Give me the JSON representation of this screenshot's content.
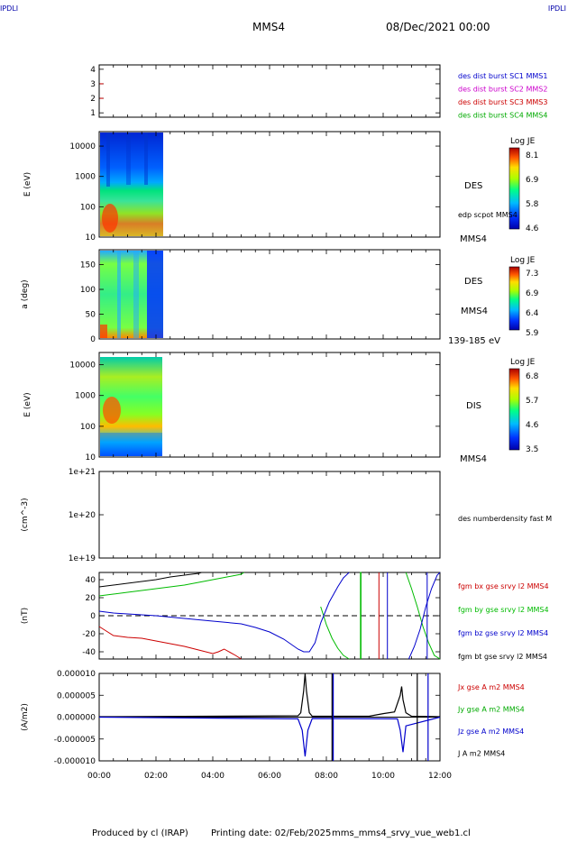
{
  "header": {
    "corner_label": "IPDLI",
    "spacecraft": "MMS4",
    "date_time": "08/Dec/2021 00:00"
  },
  "footer": {
    "produced_by": "Produced by cl (IRAP)",
    "printing_date": "Printing date: 02/Feb/2025",
    "file_name": "mms_mms4_srvy_vue_web1.cl"
  },
  "time_axis": {
    "range_hours": [
      0,
      12
    ],
    "tick_labels": [
      "00:00",
      "02:00",
      "04:00",
      "06:00",
      "08:00",
      "10:00",
      "12:00"
    ]
  },
  "chart_data": [
    {
      "type": "scatter",
      "panel": "burst-indicator",
      "ylim": [
        0.7,
        4.3
      ],
      "yticks": [
        "1",
        "2",
        "3",
        "4"
      ],
      "legend": [
        {
          "label": "des dist burst SC1 MMS1",
          "color": "#0000cc"
        },
        {
          "label": "des dist burst SC2 MMS2",
          "color": "#cc00cc"
        },
        {
          "label": "des dist burst SC3 MMS3",
          "color": "#cc0000"
        },
        {
          "label": "des dist burst SC4 MMS4",
          "color": "#00aa00"
        }
      ],
      "points": [
        {
          "x": 0.02,
          "y": 3,
          "color": "#cc0000"
        },
        {
          "x": 0.02,
          "y": 2,
          "color": "#cc0000"
        }
      ]
    },
    {
      "type": "heatmap",
      "panel": "des-energy",
      "ylabel": "E (eV)",
      "yscale": "log",
      "ylim": [
        10,
        30000
      ],
      "yticks": [
        "10",
        "100",
        "1000",
        "10000"
      ],
      "data_end_hours": 2.27,
      "instrument": "DES",
      "side_note": "edp scpot MMS4",
      "spacecraft": "MMS4",
      "colorbar": {
        "title": "Log JE",
        "ticks": [
          "8.1",
          "6.9",
          "5.8",
          "4.6"
        ]
      }
    },
    {
      "type": "heatmap",
      "panel": "des-pitch-angle",
      "ylabel": "a (deg)",
      "ylim": [
        0,
        180
      ],
      "yticks": [
        "0",
        "50",
        "100",
        "150"
      ],
      "data_end_hours": 2.27,
      "instrument": "DES",
      "spacecraft": "MMS4",
      "energy_band": "139-185 eV",
      "colorbar": {
        "title": "Log JE",
        "ticks": [
          "7.3",
          "6.9",
          "6.4",
          "5.9"
        ]
      }
    },
    {
      "type": "heatmap",
      "panel": "dis-energy",
      "ylabel": "E (eV)",
      "yscale": "log",
      "ylim": [
        10,
        25000
      ],
      "yticks": [
        "10",
        "100",
        "1000",
        "10000"
      ],
      "data_end_hours": 2.23,
      "instrument": "DIS",
      "spacecraft": "MMS4",
      "colorbar": {
        "title": "Log JE",
        "ticks": [
          "6.8",
          "5.7",
          "4.6",
          "3.5"
        ]
      }
    },
    {
      "type": "line",
      "panel": "density",
      "ylabel": "(cm^-3)",
      "yscale": "log",
      "yticks": [
        "1e+19",
        "1e+20",
        "1e+21"
      ],
      "legend": [
        {
          "label": "des numberdensity fast M",
          "color": "#000000"
        }
      ]
    },
    {
      "type": "line",
      "panel": "magnetic-field",
      "ylabel": "(nT)",
      "ylim": [
        -48,
        48
      ],
      "yticks": [
        "-40",
        "-20",
        "0",
        "20",
        "40"
      ],
      "legend": [
        {
          "label": "fgm bx gse srvy l2 MMS4",
          "color": "#cc0000"
        },
        {
          "label": "fgm by gse srvy l2 MMS4",
          "color": "#00bb00"
        },
        {
          "label": "fgm bz gse srvy l2 MMS4",
          "color": "#0000cc"
        },
        {
          "label": "fgm bt gse srvy l2 MMS4",
          "color": "#000000"
        }
      ],
      "series": [
        {
          "color": "#000000",
          "x": [
            0,
            0.5,
            1,
            1.5,
            2,
            2.5,
            3,
            3.5,
            3.6
          ],
          "y": [
            32,
            34,
            36,
            38,
            40,
            43,
            45,
            47,
            48
          ]
        },
        {
          "color": "#00bb00",
          "x": [
            0,
            0.5,
            1,
            1.5,
            2,
            2.5,
            3,
            3.5,
            4,
            4.5,
            5,
            5.1
          ],
          "y": [
            22,
            24,
            26,
            28,
            30,
            32,
            34,
            37,
            40,
            43,
            46,
            48
          ]
        },
        {
          "color": "#0000cc",
          "x": [
            0,
            0.5,
            1,
            2,
            3,
            4,
            5,
            5.5,
            6,
            6.5,
            7,
            7.2,
            7.4,
            7.6,
            7.8
          ],
          "y": [
            5,
            3,
            2,
            0,
            -3,
            -6,
            -9,
            -13,
            -18,
            -26,
            -37,
            -40,
            -40,
            -30,
            -8
          ]
        },
        {
          "color": "#cc0000",
          "x": [
            0,
            0.2,
            0.5,
            1,
            1.5,
            2,
            2.5,
            3,
            3.5,
            4,
            4.2,
            4.4,
            4.8,
            5.0
          ],
          "y": [
            -12,
            -16,
            -22,
            -24,
            -25,
            -28,
            -31,
            -34,
            -38,
            -42,
            -40,
            -37,
            -44,
            -48
          ]
        },
        {
          "color": "#00bb00",
          "x": [
            7.8,
            7.9,
            8.0,
            8.2,
            8.4,
            8.6,
            8.8
          ],
          "y": [
            10,
            0,
            -10,
            -25,
            -36,
            -44,
            -48
          ]
        },
        {
          "color": "#0000cc",
          "x": [
            7.8,
            8.1,
            8.4,
            8.6,
            8.8
          ],
          "y": [
            -8,
            15,
            32,
            42,
            48
          ]
        },
        {
          "color": "#00bb00",
          "x": [
            9.2,
            9.2,
            9.22,
            9.22
          ],
          "y": [
            -48,
            48,
            48,
            -48
          ]
        },
        {
          "color": "#cc0000",
          "x": [
            9.85,
            9.85
          ],
          "y": [
            -48,
            48
          ]
        },
        {
          "color": "#0000cc",
          "x": [
            10.15,
            10.15
          ],
          "y": [
            -48,
            48
          ]
        },
        {
          "color": "#00bb00",
          "x": [
            10.8,
            11.0,
            11.2,
            11.4,
            11.6,
            11.8,
            12
          ],
          "y": [
            48,
            30,
            10,
            -12,
            -30,
            -44,
            -48
          ]
        },
        {
          "color": "#0000cc",
          "x": [
            10.9,
            11.1,
            11.3,
            11.5,
            11.7,
            11.9,
            12
          ],
          "y": [
            -48,
            -34,
            -15,
            10,
            30,
            45,
            48
          ]
        },
        {
          "color": "#0000cc",
          "x": [
            11.55,
            11.55
          ],
          "y": [
            -48,
            48
          ]
        }
      ]
    },
    {
      "type": "line",
      "panel": "current-density",
      "ylabel": "(A/m2)",
      "ylim": [
        -1e-05,
        1e-05
      ],
      "yticks": [
        "-0.000010",
        "-0.000005",
        "0.000000",
        "0.000005",
        "0.000010"
      ],
      "legend": [
        {
          "label": "Jx gse A m2 MMS4",
          "color": "#cc0000"
        },
        {
          "label": "Jy gse A m2 MMS4",
          "color": "#00aa00"
        },
        {
          "label": "Jz gse A m2 MMS4",
          "color": "#0000cc"
        },
        {
          "label": "J A m2 MMS4",
          "color": "#000000"
        }
      ],
      "series": [
        {
          "color": "#000000",
          "x": [
            0,
            7.0,
            7.1,
            7.2,
            7.25,
            7.3,
            7.4,
            7.5,
            9.5,
            10.0,
            10.4,
            10.6,
            10.65,
            10.7,
            10.8,
            11.0,
            12
          ],
          "y": [
            1e-07,
            3e-07,
            1e-06,
            6e-06,
            1e-05,
            6e-06,
            1e-06,
            2e-07,
            2e-07,
            8e-07,
            1.2e-06,
            5e-06,
            7e-06,
            4e-06,
            1e-06,
            2e-07,
            1e-07
          ]
        },
        {
          "color": "#0000cc",
          "x": [
            0,
            7.0,
            7.15,
            7.25,
            7.35,
            7.5,
            10.5,
            10.6,
            10.7,
            10.8,
            12
          ],
          "y": [
            0,
            -4e-07,
            -3e-06,
            -9e-06,
            -3e-06,
            -3e-07,
            -4e-07,
            -3e-06,
            -8e-06,
            -2e-06,
            0
          ]
        },
        {
          "color": "#000000",
          "x": [
            8.2,
            8.2
          ],
          "y": [
            -1e-05,
            1e-05
          ]
        },
        {
          "color": "#0000cc",
          "x": [
            8.24,
            8.24
          ],
          "y": [
            -1e-05,
            1e-05
          ]
        },
        {
          "color": "#000000",
          "x": [
            11.2,
            11.2
          ],
          "y": [
            -1e-05,
            1e-05
          ]
        },
        {
          "color": "#0000cc",
          "x": [
            11.58,
            11.58
          ],
          "y": [
            -1e-05,
            1e-05
          ]
        }
      ]
    }
  ]
}
